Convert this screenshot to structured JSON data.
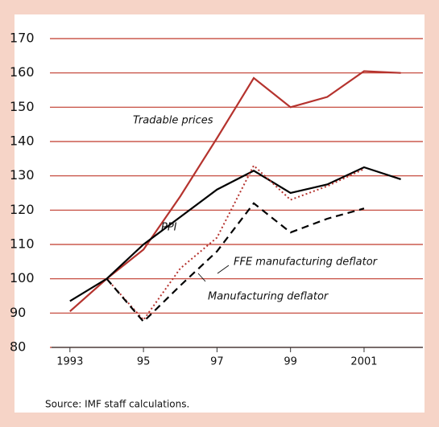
{
  "chart_data": {
    "type": "line",
    "annotations": [
      "Tradable prices",
      "PPI",
      "FFE manufacturing deflator",
      "Manufacturing deflator"
    ],
    "source": "Source: IMF staff calculations.",
    "x": [
      1993,
      1994,
      1995,
      1996,
      1997,
      1998,
      1999,
      2000,
      2001,
      2002
    ],
    "xlim": [
      1992.5,
      2002.6
    ],
    "xticks": [
      1993,
      {
        "value": 1995,
        "label": "95"
      },
      {
        "value": 1997,
        "label": "97"
      },
      {
        "value": 1999,
        "label": "99"
      },
      2001
    ],
    "ylim": [
      80,
      170
    ],
    "yticks": [
      80,
      90,
      100,
      110,
      120,
      130,
      140,
      150,
      160,
      170
    ],
    "grid": true,
    "grid_color": "#c0392b",
    "series": [
      {
        "name": "Tradable prices",
        "color": "#b5332e",
        "dash": "solid",
        "values": [
          90.5,
          100,
          108.5,
          124,
          141,
          158.5,
          150,
          153,
          160.5,
          160
        ]
      },
      {
        "name": "PPI",
        "color": "#000000",
        "dash": "solid",
        "values": [
          93.5,
          100,
          110,
          118,
          126,
          131.5,
          125,
          127.5,
          132.5,
          129
        ]
      },
      {
        "name": "Manufacturing deflator",
        "color": "#b5332e",
        "dash": "dotted",
        "values": [
          null,
          100,
          88,
          103,
          112,
          133,
          123,
          127,
          132,
          null
        ]
      },
      {
        "name": "FFE manufacturing deflator",
        "color": "#000000",
        "dash": "dashed",
        "values": [
          null,
          100,
          87.5,
          98,
          108,
          122,
          113.5,
          117.5,
          120.5,
          null
        ]
      }
    ]
  }
}
